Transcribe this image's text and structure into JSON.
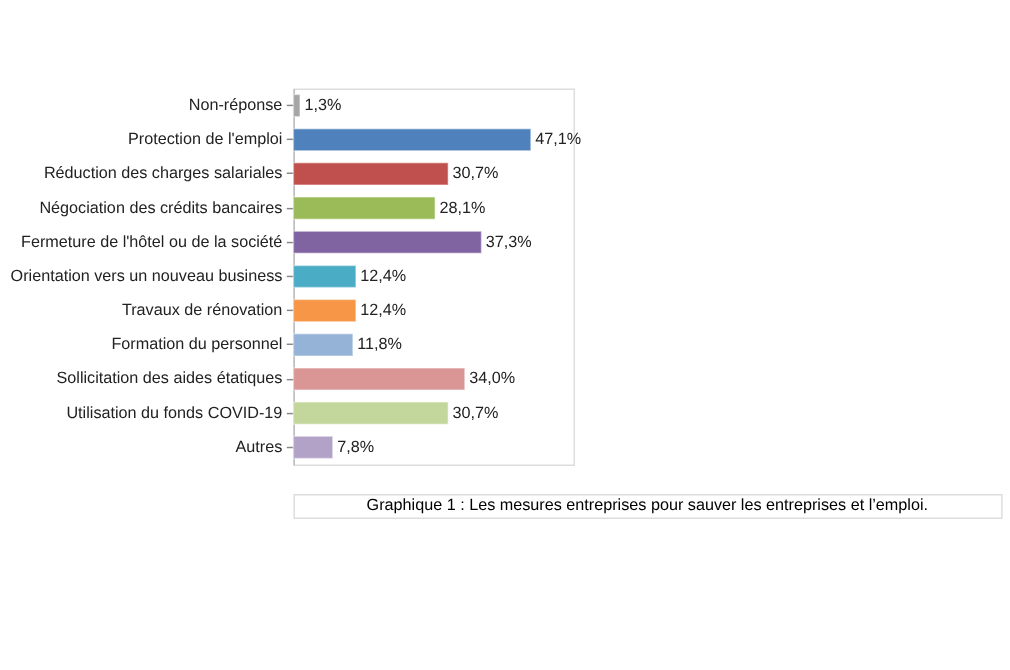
{
  "chart_data": {
    "type": "bar",
    "orientation": "horizontal",
    "categories": [
      "Non-réponse",
      "Protection de l'emploi",
      "Réduction des charges salariales",
      "Négociation des crédits bancaires",
      "Fermeture de l'hôtel ou de la société",
      "Orientation vers un nouveau business",
      "Travaux de rénovation",
      "Formation du personnel",
      "Sollicitation des aides étatiques",
      "Utilisation du fonds COVID-19",
      "Autres"
    ],
    "values": [
      1.3,
      47.1,
      30.7,
      28.1,
      37.3,
      12.4,
      12.4,
      11.8,
      34.0,
      30.7,
      7.8
    ],
    "value_labels": [
      "1,3%",
      "47,1%",
      "30,7%",
      "28,1%",
      "37,3%",
      "12,4%",
      "12,4%",
      "11,8%",
      "34,0%",
      "30,7%",
      "7,8%"
    ],
    "colors": [
      "#a6a6a6",
      "#4f81bd",
      "#c0504d",
      "#9bbb59",
      "#8064a2",
      "#4bacc6",
      "#f79646",
      "#95b3d7",
      "#d99694",
      "#c3d69b",
      "#b3a2c7"
    ],
    "annotations": [
      "Graphique 1 : Les mesures entreprises pour sauver les entreprises et l’emploi."
    ]
  }
}
